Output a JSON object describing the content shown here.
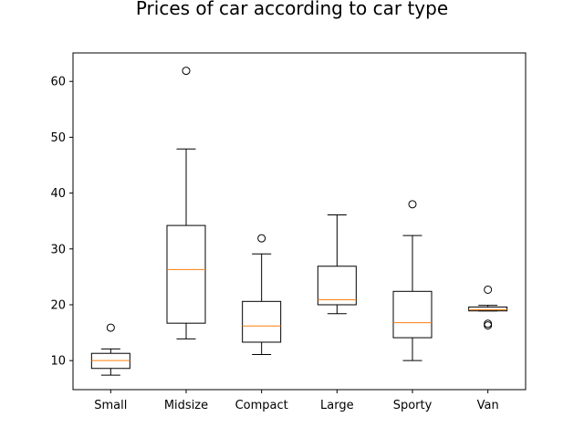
{
  "chart_data": {
    "type": "box",
    "title": "Prices of car according to car type",
    "xlabel": "",
    "ylabel": "",
    "ylim": [
      4.8,
      65.1
    ],
    "yticks": [
      10,
      20,
      30,
      40,
      50,
      60
    ],
    "grid": false,
    "colors": {
      "box": "#000000",
      "median": "#ff7f0e",
      "background": "#ffffff"
    },
    "categories": [
      "Small",
      "Midsize",
      "Compact",
      "Large",
      "Sporty",
      "Van"
    ],
    "boxes": [
      {
        "category": "Small",
        "whislo": 7.4,
        "q1": 8.6,
        "med": 10.0,
        "q3": 11.3,
        "whishi": 12.1,
        "fliers": [
          15.9
        ]
      },
      {
        "category": "Midsize",
        "whislo": 13.9,
        "q1": 16.7,
        "med": 26.3,
        "q3": 34.2,
        "whishi": 47.9,
        "fliers": [
          61.9
        ]
      },
      {
        "category": "Compact",
        "whislo": 11.1,
        "q1": 13.3,
        "med": 16.2,
        "q3": 20.6,
        "whishi": 29.1,
        "fliers": [
          31.9
        ]
      },
      {
        "category": "Large",
        "whislo": 18.4,
        "q1": 20.0,
        "med": 20.9,
        "q3": 26.9,
        "whishi": 36.1,
        "fliers": []
      },
      {
        "category": "Sporty",
        "whislo": 10.0,
        "q1": 14.1,
        "med": 16.8,
        "q3": 22.4,
        "whishi": 32.4,
        "fliers": [
          38.0
        ]
      },
      {
        "category": "Van",
        "whislo": 18.9,
        "q1": 18.9,
        "med": 19.1,
        "q3": 19.6,
        "whishi": 19.9,
        "fliers": [
          22.7,
          16.6,
          16.3
        ]
      }
    ]
  }
}
